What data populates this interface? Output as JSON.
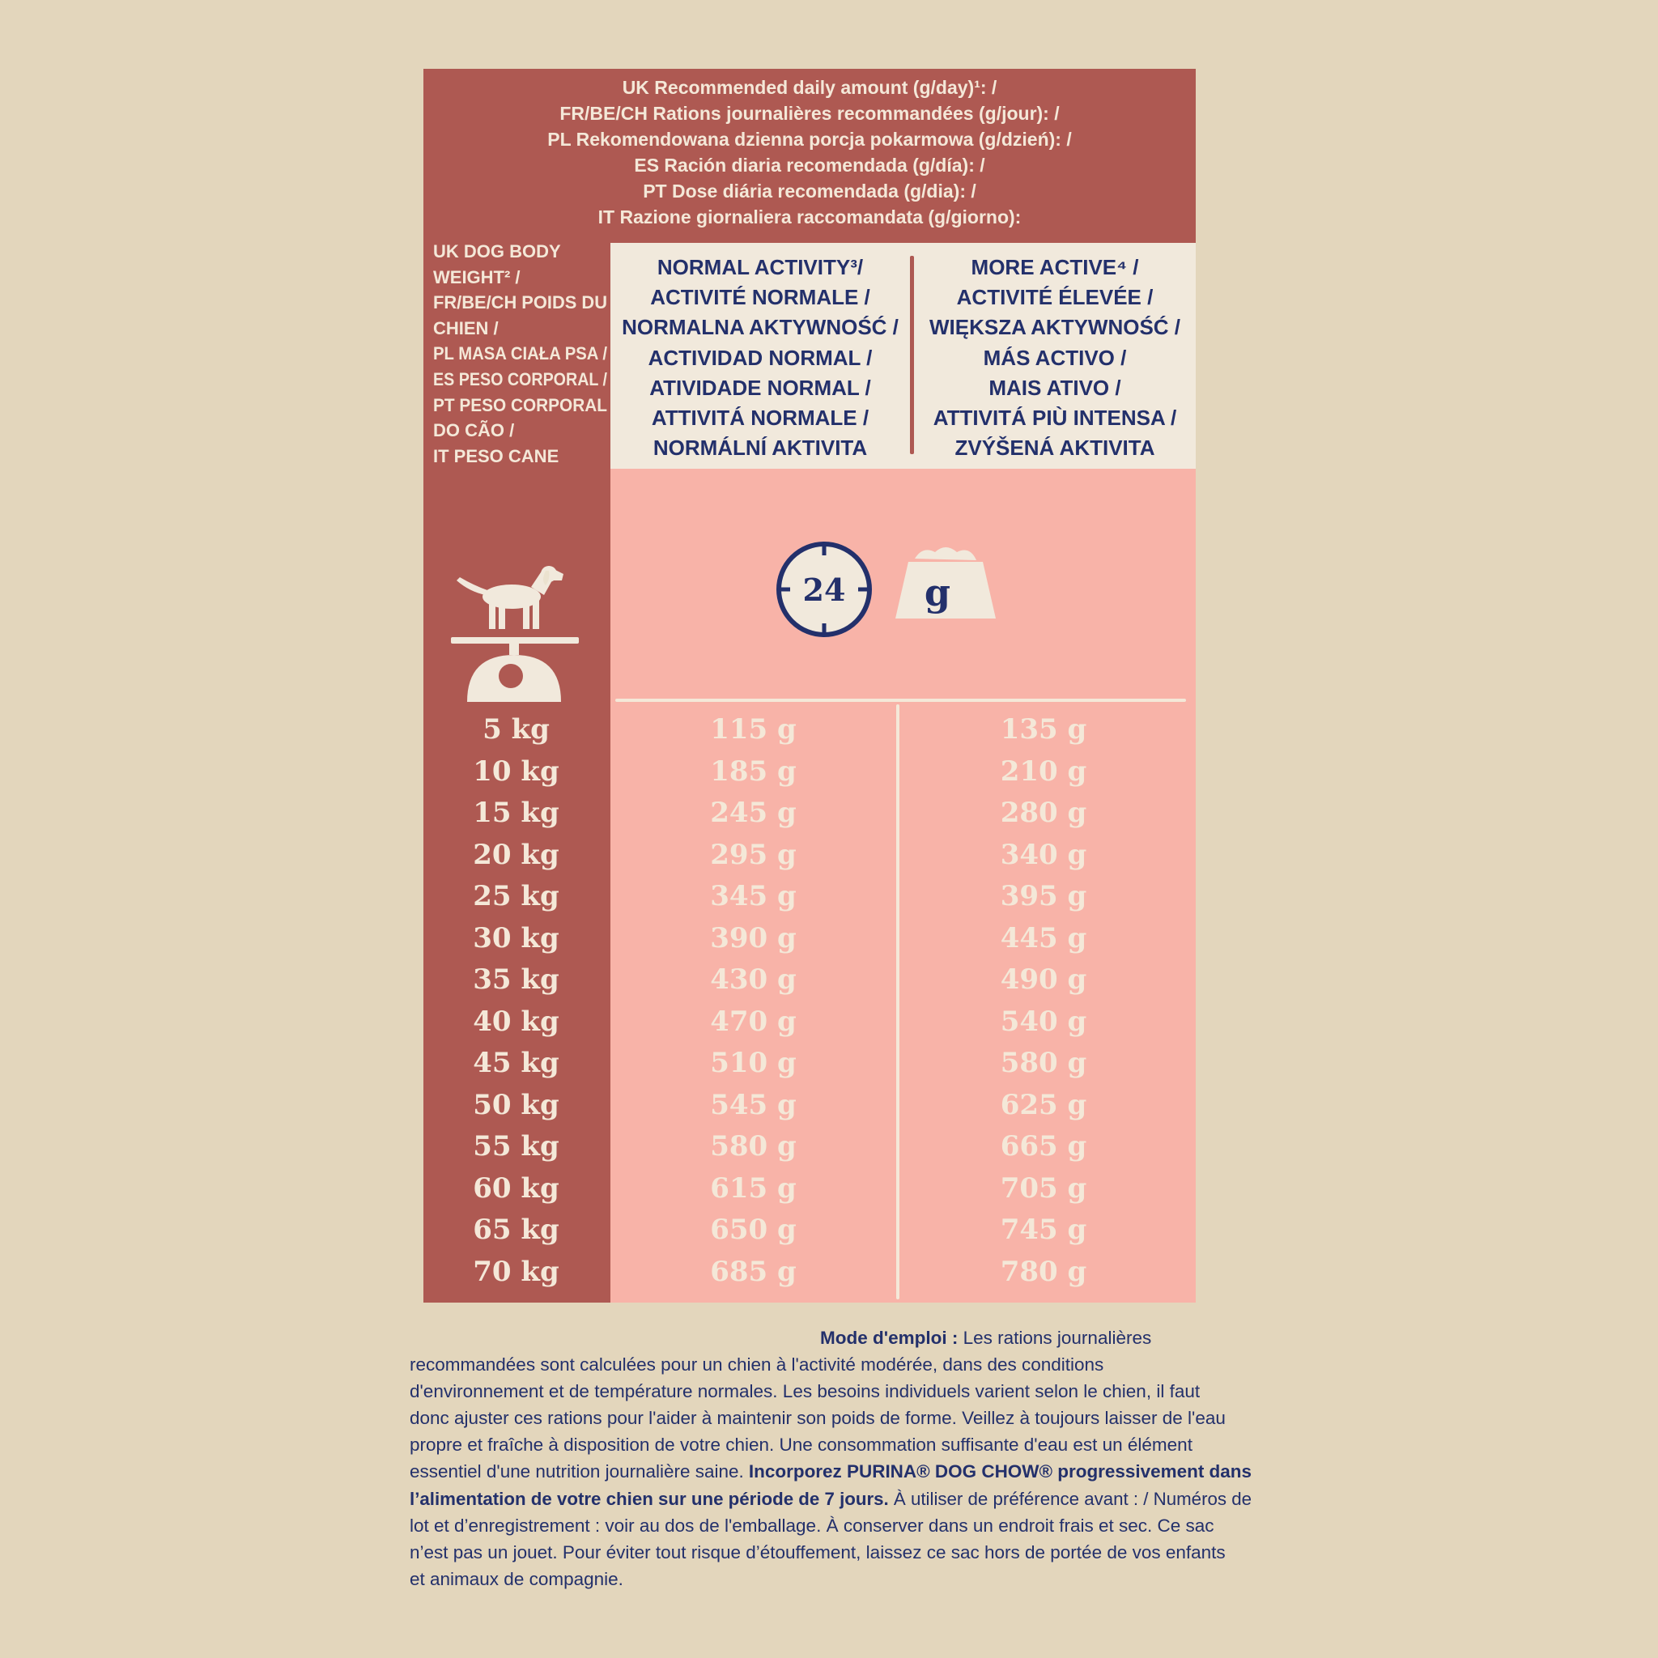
{
  "title_lines": [
    "UK Recommended daily amount (g/day)¹: /",
    "FR/BE/CH Rations journalières recommandées (g/jour):  /",
    "PL Rekomendowana dzienna porcja pokarmowa (g/dzień): /",
    "ES Ración diaria recomendada (g/día): /",
    "PT Dose diária recomendada (g/dia): /",
    "IT Razione giornaliera raccomandata (g/giorno):"
  ],
  "body_weight_label": [
    "UK DOG BODY",
    "WEIGHT² /",
    "FR/BE/CH POIDS DU",
    "CHIEN /",
    "PL MASA CIAŁA PSA /",
    "ES PESO CORPORAL /",
    "PT PESO CORPORAL",
    "DO CÃO /",
    "IT PESO CANE"
  ],
  "normal_activity": [
    "NORMAL ACTIVITY³/",
    "ACTIVITÉ NORMALE /",
    "NORMALNA AKTYWNOŚĆ /",
    "ACTIVIDAD NORMAL /",
    "ATIVIDADE NORMAL /",
    "ATTIVITÁ NORMALE /",
    "NORMÁLNÍ AKTIVITA"
  ],
  "more_active": [
    "MORE ACTIVE⁴ /",
    "ACTIVITÉ ÉLEVÉE /",
    "WIĘKSZA AKTYWNOŚĆ /",
    "MÁS ACTIVO /",
    "MAIS ATIVO /",
    "ATTIVITÁ PIÙ INTENSA /",
    "ZVÝŠENÁ AKTIVITA"
  ],
  "icons": {
    "clock_label": "24",
    "bowl_label": "g",
    "clock": "clock-24-icon",
    "bowl": "food-bowl-icon",
    "dog_scale": "dog-on-scale-icon"
  },
  "rows": [
    {
      "weight": "5 kg",
      "normal": "115 g",
      "more": "135 g"
    },
    {
      "weight": "10 kg",
      "normal": "185 g",
      "more": "210 g"
    },
    {
      "weight": "15 kg",
      "normal": "245 g",
      "more": "280 g"
    },
    {
      "weight": "20 kg",
      "normal": "295 g",
      "more": "340 g"
    },
    {
      "weight": "25 kg",
      "normal": "345 g",
      "more": "395 g"
    },
    {
      "weight": "30 kg",
      "normal": "390 g",
      "more": "445 g"
    },
    {
      "weight": "35 kg",
      "normal": "430 g",
      "more": "490 g"
    },
    {
      "weight": "40 kg",
      "normal": "470 g",
      "more": "540 g"
    },
    {
      "weight": "45 kg",
      "normal": "510 g",
      "more": "580 g"
    },
    {
      "weight": "50 kg",
      "normal": "545 g",
      "more": "625 g"
    },
    {
      "weight": "55 kg",
      "normal": "580 g",
      "more": "665 g"
    },
    {
      "weight": "60 kg",
      "normal": "615 g",
      "more": "705 g"
    },
    {
      "weight": "65 kg",
      "normal": "650 g",
      "more": "745 g"
    },
    {
      "weight": "70 kg",
      "normal": "685 g",
      "more": "780 g"
    }
  ],
  "mode_emploi": {
    "heading": "Mode d'emploi :",
    "line1_rest": " Les rations journalières",
    "line2": "recommandées sont calculées pour un chien à l'activité modérée, dans des conditions",
    "line3": "d'environnement et de température normales. Les besoins individuels varient selon le chien, il faut",
    "line4": "donc ajuster ces rations pour l'aider à maintenir son poids de forme. Veillez à toujours laisser de l'eau",
    "line5": "propre et fraîche à disposition de votre chien. Une consommation suffisante d'eau est un élément",
    "line6_plain": "essentiel d'une nutrition journalière saine. ",
    "line6_bold": "Incorporez PURINA® DOG CHOW® progressivement dans",
    "line7_bold": "l’alimentation de votre chien sur une période de 7 jours.",
    "line7_plain": " À utiliser de préférence avant : / Numéros de",
    "line8": "lot et d’enregistrement : voir au dos de l'emballage.  À conserver dans un endroit frais et sec. Ce sac",
    "line9": "n’est pas un jouet. Pour éviter tout risque d’étouffement, laissez ce sac hors de portée de vos enfants",
    "line10": "et animaux de compagnie."
  },
  "colors": {
    "background": "#e3d6bc",
    "panel": "#ae5952",
    "pink": "#f8b3a8",
    "cream": "#f1e9dc",
    "navy": "#23306b"
  }
}
